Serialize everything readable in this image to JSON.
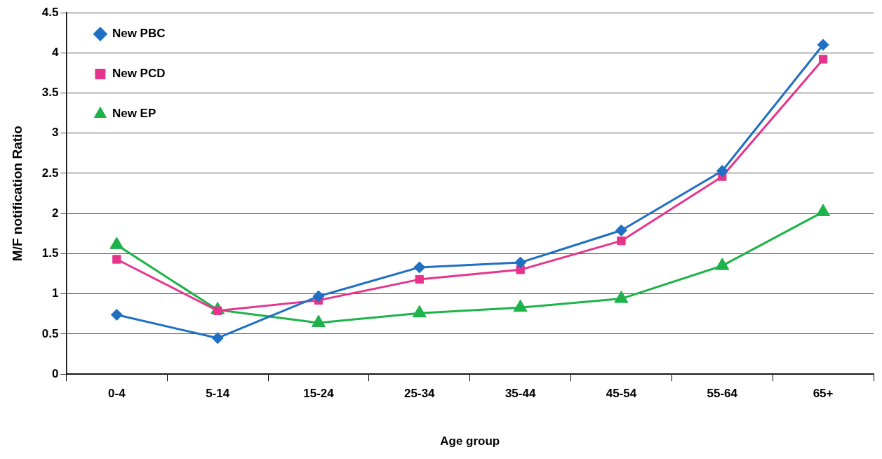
{
  "chart_data": {
    "type": "line",
    "xlabel": "Age group",
    "ylabel": "M/F notification Ratio",
    "categories": [
      "0-4",
      "5-14",
      "15-24",
      "25-34",
      "35-44",
      "45-54",
      "55-64",
      "65+"
    ],
    "series": [
      {
        "name": "New PBC",
        "color": "#1f6fc4",
        "marker": "diamond",
        "values": [
          0.74,
          0.45,
          0.97,
          1.33,
          1.39,
          1.79,
          2.53,
          4.1
        ]
      },
      {
        "name": "New PCD",
        "color": "#e6348c",
        "marker": "square",
        "values": [
          1.43,
          0.79,
          0.92,
          1.18,
          1.3,
          1.66,
          2.46,
          3.92
        ]
      },
      {
        "name": "New EP",
        "color": "#1db34a",
        "marker": "triangle",
        "values": [
          1.61,
          0.8,
          0.64,
          0.76,
          0.83,
          0.94,
          1.35,
          2.02
        ]
      }
    ],
    "ylim": [
      0,
      4.5
    ],
    "yticks": [
      0,
      0.5,
      1,
      1.5,
      2,
      2.5,
      3,
      3.5,
      4,
      4.5
    ],
    "grid": "y",
    "legend": "top left",
    "line_style": "solid"
  }
}
